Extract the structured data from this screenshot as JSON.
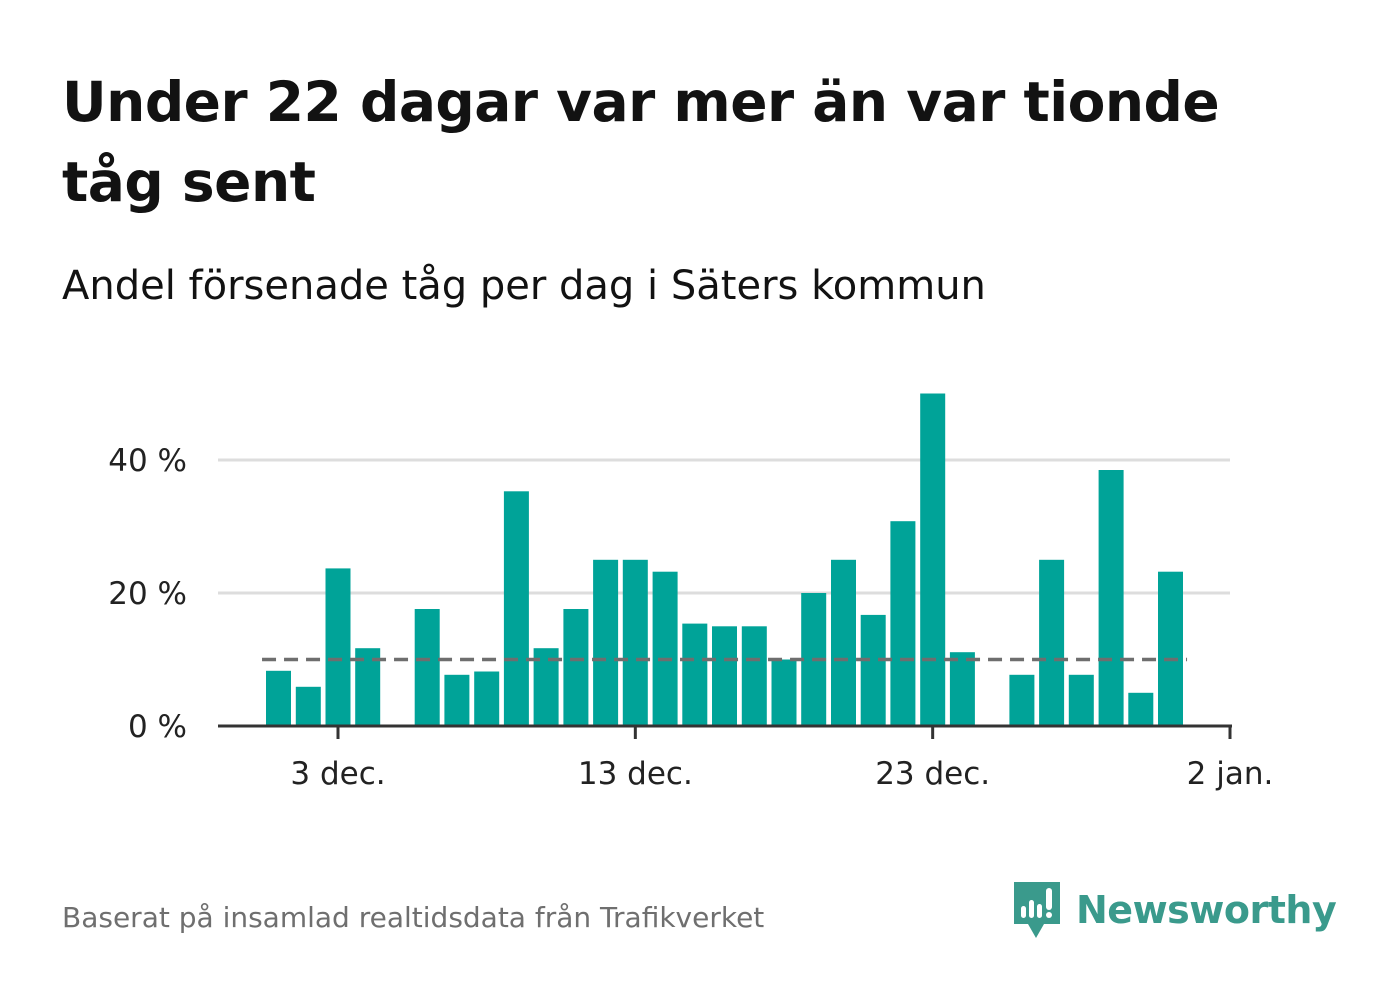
{
  "header": {
    "title": "Under 22 dagar var mer än var tionde tåg sent",
    "subtitle": "Andel försenade tåg per dag i Säters kommun"
  },
  "footer": {
    "source": "Baserat på insamlad realtidsdata från Trafikverket",
    "brand": "Newsworthy"
  },
  "colors": {
    "bar": "#00a398",
    "reference_line": "#6e6e6e",
    "grid": "#dddddd",
    "axis": "#333333",
    "brand": "#3a9a8c"
  },
  "icons": {
    "brand_logo": "newsworthy-logo-icon"
  },
  "chart_data": {
    "type": "bar",
    "x_label_date": "date",
    "dates": [
      "2023-12-01",
      "2023-12-02",
      "2023-12-03",
      "2023-12-04",
      "2023-12-05",
      "2023-12-06",
      "2023-12-07",
      "2023-12-08",
      "2023-12-09",
      "2023-12-10",
      "2023-12-11",
      "2023-12-12",
      "2023-12-13",
      "2023-12-14",
      "2023-12-15",
      "2023-12-16",
      "2023-12-17",
      "2023-12-18",
      "2023-12-19",
      "2023-12-20",
      "2023-12-21",
      "2023-12-22",
      "2023-12-23",
      "2023-12-24",
      "2023-12-25",
      "2023-12-26",
      "2023-12-27",
      "2023-12-28",
      "2023-12-29",
      "2023-12-30",
      "2023-12-31",
      "2024-01-01"
    ],
    "values": [
      8.3,
      5.9,
      23.7,
      11.7,
      null,
      17.6,
      7.7,
      8.2,
      35.3,
      11.7,
      17.6,
      25.0,
      25.0,
      23.2,
      15.4,
      15.0,
      15.0,
      10.0,
      20.0,
      25.0,
      16.7,
      30.8,
      50.0,
      11.1,
      null,
      7.7,
      25.0,
      7.7,
      38.5,
      5.0,
      23.2,
      null
    ],
    "x_ticks": [
      "3 dec.",
      "13 dec.",
      "23 dec.",
      "2 jan."
    ],
    "x_tick_dates": [
      "2023-12-03",
      "2023-12-13",
      "2023-12-23",
      "2024-01-02"
    ],
    "x_range": [
      "2023-11-27",
      "2024-01-02"
    ],
    "y_ticks": [
      "0 %",
      "20 %",
      "40 %"
    ],
    "y_tick_values": [
      0,
      20,
      40
    ],
    "ylim": [
      0,
      52
    ],
    "reference_line": 10,
    "grid": true,
    "unit": "%"
  }
}
